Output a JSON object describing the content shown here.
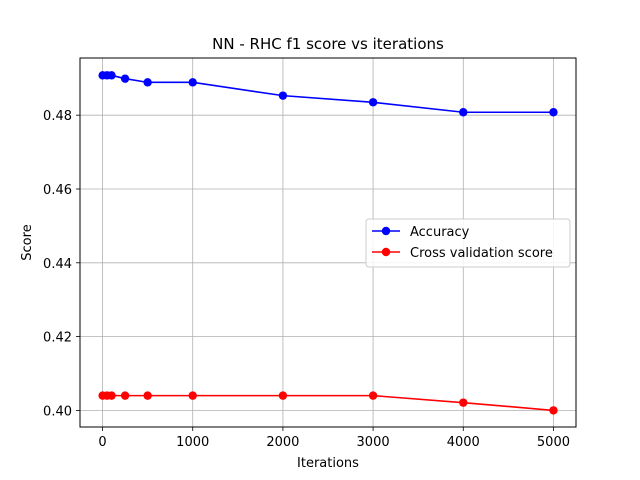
{
  "chart_data": {
    "type": "line",
    "title": "NN - RHC f1 score vs iterations",
    "xlabel": "Iterations",
    "ylabel": "Score",
    "xlim": [
      -250,
      5250
    ],
    "ylim": [
      0.3955,
      0.4955
    ],
    "xticks": [
      0,
      1000,
      2000,
      3000,
      4000,
      5000
    ],
    "yticks": [
      0.4,
      0.42,
      0.44,
      0.46,
      0.48
    ],
    "xtick_labels": [
      "0",
      "1000",
      "2000",
      "3000",
      "4000",
      "5000"
    ],
    "ytick_labels": [
      "0.40",
      "0.42",
      "0.44",
      "0.46",
      "0.48"
    ],
    "grid": true,
    "legend_position": "center-right",
    "x": [
      1,
      50,
      100,
      250,
      500,
      1000,
      2000,
      3000,
      4000,
      5000
    ],
    "series": [
      {
        "name": "Accuracy",
        "color": "#0000ff",
        "values": [
          0.4908,
          0.4908,
          0.4908,
          0.4899,
          0.4889,
          0.4889,
          0.4853,
          0.4835,
          0.4808,
          0.4808
        ]
      },
      {
        "name": "Cross validation score",
        "color": "#ff0000",
        "values": [
          0.404,
          0.404,
          0.404,
          0.404,
          0.404,
          0.404,
          0.404,
          0.404,
          0.4021,
          0.4
        ]
      }
    ]
  }
}
